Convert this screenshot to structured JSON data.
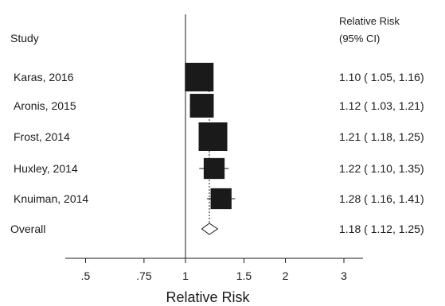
{
  "chart_data": {
    "type": "forest",
    "headers": {
      "study": "Study",
      "effect_line1": "Relative Risk",
      "effect_line2": "(95% CI)"
    },
    "studies": [
      {
        "label": "Karas, 2016",
        "rr": 1.1,
        "lower": 1.05,
        "upper": 1.16,
        "text": "1.10 ( 1.05, 1.16)",
        "weight": 1.0
      },
      {
        "label": "Aronis, 2015",
        "rr": 1.12,
        "lower": 1.03,
        "upper": 1.21,
        "text": "1.12 ( 1.03, 1.21)",
        "weight": 0.83
      },
      {
        "label": "Frost, 2014",
        "rr": 1.21,
        "lower": 1.18,
        "upper": 1.25,
        "text": "1.21 ( 1.18, 1.25)",
        "weight": 1.0
      },
      {
        "label": "Huxley, 2014",
        "rr": 1.22,
        "lower": 1.1,
        "upper": 1.35,
        "text": "1.22 ( 1.10, 1.35)",
        "weight": 0.73
      },
      {
        "label": "Knuiman, 2014",
        "rr": 1.28,
        "lower": 1.16,
        "upper": 1.41,
        "text": "1.28 ( 1.16, 1.41)",
        "weight": 0.73
      }
    ],
    "overall": {
      "label": "Overall",
      "rr": 1.18,
      "lower": 1.12,
      "upper": 1.25,
      "text": "1.18 ( 1.12, 1.25)"
    },
    "x_axis": {
      "label": "Relative Risk",
      "scale": "log",
      "ticks": [
        0.5,
        0.75,
        1,
        1.5,
        2,
        3
      ],
      "tick_labels": [
        ".5",
        ".75",
        "1",
        "1.5",
        "2",
        "3"
      ],
      "range": [
        0.42,
        3.5
      ]
    },
    "null_value": 1,
    "colors": {
      "box": "#1a1a1a",
      "line": "#1a1a1a",
      "diamond_fill": "#ffffff"
    }
  }
}
